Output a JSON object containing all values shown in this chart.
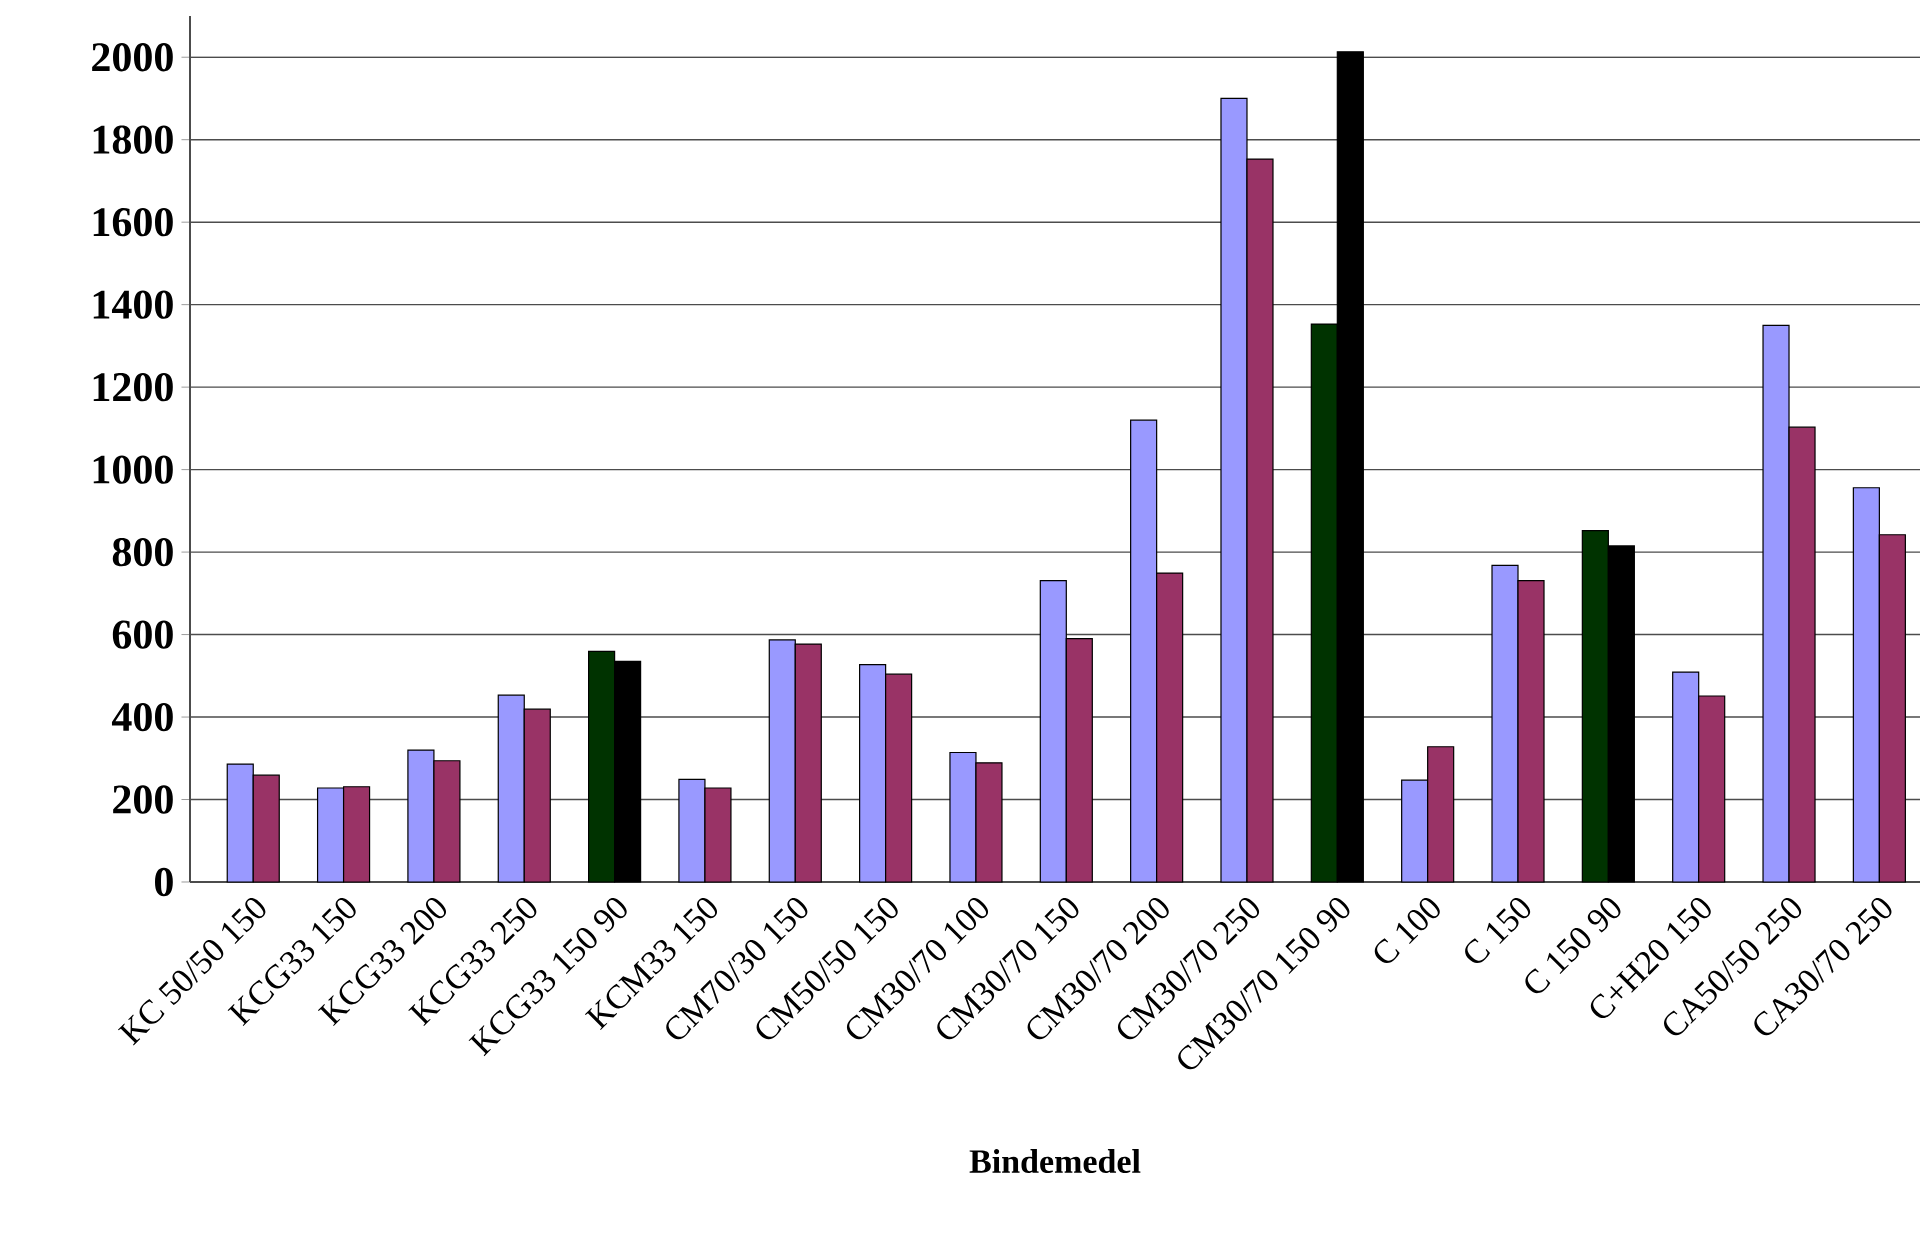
{
  "chart_data": {
    "type": "bar",
    "xlabel": "Bindemedel",
    "categories": [
      "KC 50/50 150",
      "KCG33 150",
      "KCG33 200",
      "KCG33 250",
      "KCG33 150 90",
      "KCM33 150",
      "CM70/30 150",
      "CM50/50 150",
      "CM30/70 100",
      "CM30/70 150",
      "CM30/70 200",
      "CM30/70 250",
      "CM30/70 150 90",
      "C 100",
      "C 150",
      "C 150 90",
      "C+H20 150",
      "CA50/50 250",
      "CA30/70 250"
    ],
    "series": [
      {
        "values": [
          286,
          228,
          320,
          453,
          559,
          249,
          587,
          527,
          314,
          731,
          1120,
          1900,
          1353,
          247,
          768,
          852,
          509,
          1350,
          956
        ],
        "colors": [
          "#9999ff",
          "#9999ff",
          "#9999ff",
          "#9999ff",
          "#003300",
          "#9999ff",
          "#9999ff",
          "#9999ff",
          "#9999ff",
          "#9999ff",
          "#9999ff",
          "#9999ff",
          "#003300",
          "#9999ff",
          "#9999ff",
          "#003300",
          "#9999ff",
          "#9999ff",
          "#9999ff"
        ]
      },
      {
        "values": [
          259,
          231,
          294,
          419,
          535,
          228,
          577,
          504,
          289,
          590,
          749,
          1753,
          2013,
          328,
          731,
          815,
          451,
          1103,
          842
        ],
        "colors": [
          "#993366",
          "#993366",
          "#993366",
          "#993366",
          "#000000",
          "#993366",
          "#993366",
          "#993366",
          "#993366",
          "#993366",
          "#993366",
          "#993366",
          "#000000",
          "#993366",
          "#993366",
          "#000000",
          "#993366",
          "#993366",
          "#993366"
        ]
      }
    ],
    "ylim": [
      0,
      2100
    ],
    "yticks": [
      0,
      200,
      400,
      600,
      800,
      1000,
      1200,
      1400,
      1600,
      1800,
      2000
    ],
    "grid": "y"
  }
}
